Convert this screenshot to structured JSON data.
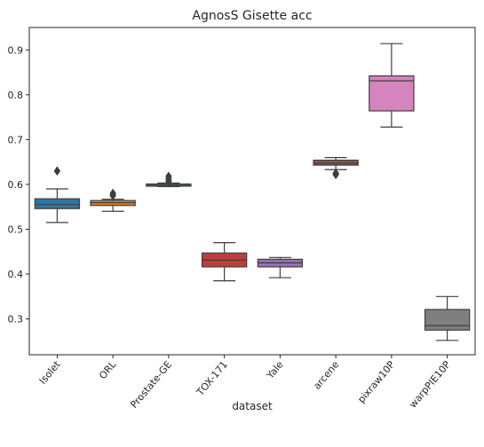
{
  "chart_data": {
    "type": "box",
    "title": "AgnosS Gisette acc",
    "xlabel": "dataset",
    "ylabel": "",
    "ylim": [
      0.22,
      0.95
    ],
    "yticks": [
      "0.3",
      "0.4",
      "0.5",
      "0.6",
      "0.7",
      "0.8",
      "0.9"
    ],
    "grid": false,
    "categories": [
      "Isolet",
      "ORL",
      "Prostate-GE",
      "TOX-171",
      "Yale",
      "arcene",
      "pixraw10P",
      "warpPIE10P"
    ],
    "colors": [
      "#3274a1",
      "#e1812c",
      "#3a923a",
      "#c03d3e",
      "#9372b2",
      "#845b53",
      "#d684bd",
      "#7f7f7f"
    ],
    "boxes": [
      {
        "whisker_low": 0.515,
        "q1": 0.546,
        "median": 0.555,
        "q3": 0.568,
        "whisker_high": 0.59,
        "outliers": [
          0.63
        ]
      },
      {
        "whisker_low": 0.54,
        "q1": 0.553,
        "median": 0.559,
        "q3": 0.564,
        "whisker_high": 0.567,
        "outliers": [
          0.575,
          0.58
        ]
      },
      {
        "whisker_low": 0.595,
        "q1": 0.596,
        "median": 0.598,
        "q3": 0.601,
        "whisker_high": 0.603,
        "outliers": [
          0.607,
          0.612,
          0.618
        ]
      },
      {
        "whisker_low": 0.385,
        "q1": 0.416,
        "median": 0.431,
        "q3": 0.447,
        "whisker_high": 0.47,
        "outliers": []
      },
      {
        "whisker_low": 0.392,
        "q1": 0.416,
        "median": 0.425,
        "q3": 0.433,
        "whisker_high": 0.437,
        "outliers": []
      },
      {
        "whisker_low": 0.633,
        "q1": 0.643,
        "median": 0.647,
        "q3": 0.654,
        "whisker_high": 0.66,
        "outliers": [
          0.622,
          0.625
        ]
      },
      {
        "whisker_low": 0.728,
        "q1": 0.764,
        "median": 0.831,
        "q3": 0.842,
        "whisker_high": 0.914,
        "outliers": []
      },
      {
        "whisker_low": 0.252,
        "q1": 0.275,
        "median": 0.285,
        "q3": 0.321,
        "whisker_high": 0.35,
        "outliers": []
      }
    ]
  }
}
